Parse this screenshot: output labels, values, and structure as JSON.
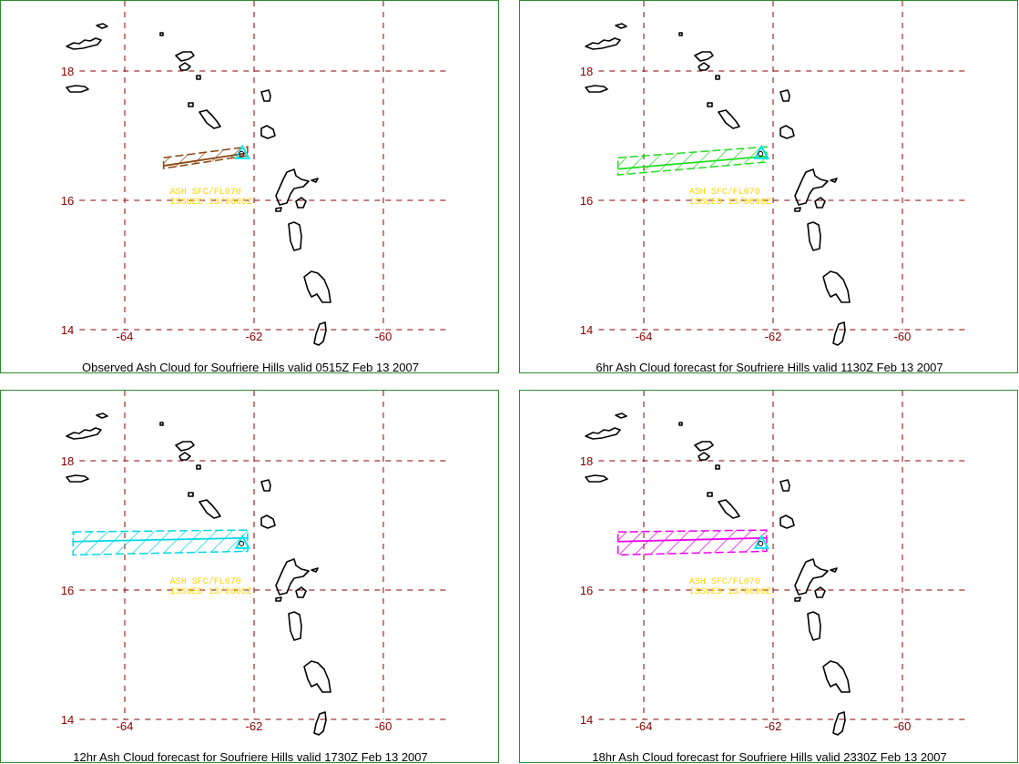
{
  "map": {
    "lat_ticks": [
      "18",
      "16",
      "14"
    ],
    "lon_ticks": [
      "-64",
      "-62",
      "-60"
    ],
    "volcano": "Soufriere  Hills",
    "advisory_lines": [
      "ASH SFC/FL070",
      "ISSUED 13/0600Z"
    ]
  },
  "colors": {
    "frame": "#2e8b2e",
    "grid": "#8b0000",
    "coast": "#000000",
    "volcano_marker": "#00e5ee",
    "advisory_text": "#ffd400"
  },
  "panels": [
    {
      "caption": "Observed Ash Cloud for Soufriere  Hills valid 0515Z Feb 13 2007",
      "cloud_color": "#8b4513",
      "cloud_lon": [
        -63.4,
        -62.1
      ],
      "cloud_lat": [
        16.55,
        16.8
      ]
    },
    {
      "caption": "6hr Ash Cloud forecast for Soufriere  Hills valid 1130Z Feb 13 2007",
      "cloud_color": "#22dd22",
      "cloud_lon": [
        -64.4,
        -62.1
      ],
      "cloud_lat": [
        16.45,
        16.8
      ]
    },
    {
      "caption": "12hr Ash Cloud forecast for Soufriere  Hills valid 1730Z Feb 13 2007",
      "cloud_color": "#00d8e8",
      "cloud_lon": [
        -64.8,
        -62.1
      ],
      "cloud_lat": [
        16.6,
        16.9
      ]
    },
    {
      "caption": "18hr Ash Cloud forecast for Soufriere  Hills valid 2330Z Feb 13 2007",
      "cloud_color": "#ee00ee",
      "cloud_lon": [
        -64.4,
        -62.1
      ],
      "cloud_lat": [
        16.6,
        16.9
      ]
    }
  ]
}
